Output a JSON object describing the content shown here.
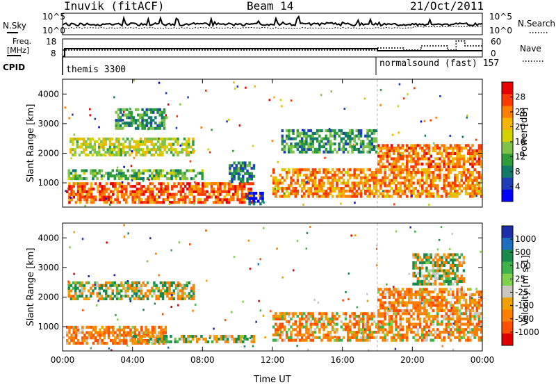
{
  "header": {
    "station": "Inuvik (fitACF)",
    "beam": "Beam 14",
    "date": "21/Oct/2011"
  },
  "noise_panel": {
    "left_label": "N.Sky",
    "right_label": "N.Search",
    "ticks": [
      "10^5",
      "10^0"
    ]
  },
  "freq_panel": {
    "left_label_1": "Freq.",
    "left_label_2": "[MHz]",
    "right_label": "Nave",
    "left_ticks": [
      "18",
      "8"
    ],
    "right_ticks": [
      "60",
      "0"
    ],
    "cpid_label": "CPID",
    "cpid_segments": [
      {
        "name": "themis 3300",
        "start_hour": 0
      },
      {
        "name": "normalsound (fast)  157",
        "start_hour": 18
      }
    ]
  },
  "chart_data": [
    {
      "type": "heatmap",
      "panel": "power",
      "ylabel": "Slant Range [km]",
      "y_ticks": [
        "1000",
        "2000",
        "3000",
        "4000"
      ],
      "ylim": [
        180,
        4500
      ],
      "colorbar_label": "Power [dB]",
      "colorbar_ticks": [
        "28",
        "24",
        "20",
        "16",
        "12",
        "8",
        "4"
      ],
      "colorbar_colors": [
        "#e80000",
        "#ff3a00",
        "#ff7f00",
        "#f4b400",
        "#d2d200",
        "#7fc34a",
        "#2f9d3a",
        "#137a6a",
        "#1f3fb8",
        "#0000ff"
      ],
      "regions": [
        {
          "x": [
            0.2,
            11.0
          ],
          "y": [
            300,
            1000
          ],
          "level": 26
        },
        {
          "x": [
            0.3,
            8.0
          ],
          "y": [
            1100,
            1500
          ],
          "level": 14
        },
        {
          "x": [
            0.4,
            7.5
          ],
          "y": [
            1900,
            2500
          ],
          "level": 18
        },
        {
          "x": [
            3.0,
            6.0
          ],
          "y": [
            2800,
            3500
          ],
          "level": 12
        },
        {
          "x": [
            9.5,
            11.0
          ],
          "y": [
            1000,
            1700
          ],
          "level": 10
        },
        {
          "x": [
            10.5,
            11.5
          ],
          "y": [
            250,
            700
          ],
          "level": 5
        },
        {
          "x": [
            12.0,
            24.0
          ],
          "y": [
            500,
            1500
          ],
          "level": 24
        },
        {
          "x": [
            18.0,
            24.0
          ],
          "y": [
            1500,
            2300
          ],
          "level": 25
        },
        {
          "x": [
            12.5,
            18.0
          ],
          "y": [
            2000,
            2800
          ],
          "level": 12
        }
      ]
    },
    {
      "type": "heatmap",
      "panel": "velocity",
      "xlabel": "Time UT",
      "ylabel": "Slant Range [km]",
      "x_ticks": [
        "00:00",
        "04:00",
        "08:00",
        "12:00",
        "16:00",
        "20:00",
        "00:00"
      ],
      "y_ticks": [
        "1000",
        "2000",
        "3000",
        "4000"
      ],
      "ylim": [
        180,
        4500
      ],
      "colorbar_label": "Velocity [m s-1]",
      "colorbar_ticks": [
        "1000",
        "500",
        "100",
        "25",
        "-25",
        "-100",
        "-500",
        "-1000"
      ],
      "colorbar_colors": [
        "#1c2fa8",
        "#1f6fbf",
        "#1a8a4a",
        "#3fb34a",
        "#7fd04a",
        "#c8c8c0",
        "#f0a000",
        "#ff8000",
        "#ff5000",
        "#e00000"
      ],
      "regions": [
        {
          "x": [
            0.2,
            6.0
          ],
          "y": [
            400,
            1000
          ],
          "velocity": -200
        },
        {
          "x": [
            4.0,
            11.0
          ],
          "y": [
            450,
            700
          ],
          "velocity": 0
        },
        {
          "x": [
            0.3,
            7.5
          ],
          "y": [
            1900,
            2500
          ],
          "velocity": 0
        },
        {
          "x": [
            12.0,
            24.0
          ],
          "y": [
            500,
            1500
          ],
          "velocity": -150
        },
        {
          "x": [
            18.0,
            24.0
          ],
          "y": [
            1500,
            2300
          ],
          "velocity": -200
        },
        {
          "x": [
            20.0,
            23.0
          ],
          "y": [
            2400,
            3500
          ],
          "velocity": 0
        }
      ]
    }
  ]
}
